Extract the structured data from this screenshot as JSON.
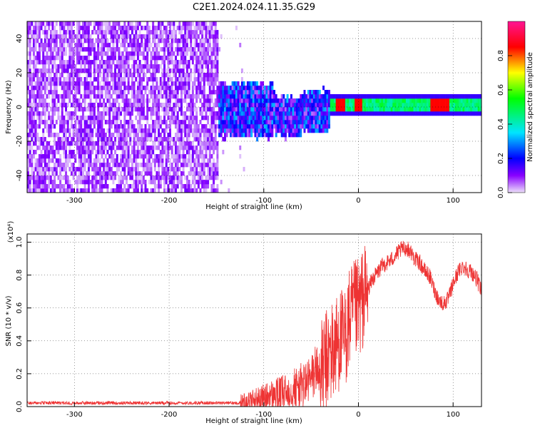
{
  "title": "C2E1.2024.024.11.35.G29",
  "chart_data": [
    {
      "type": "heatmap",
      "xlabel": "Height of straight line (km)",
      "ylabel": "Frequency (Hz)",
      "xlim": [
        -350,
        130
      ],
      "ylim": [
        -50,
        50
      ],
      "x_ticks": [
        -300,
        -200,
        -100,
        0,
        100
      ],
      "y_ticks": [
        -40,
        -20,
        0,
        20,
        40
      ],
      "colorbar": {
        "label": "Normalized spectral amplitude",
        "range": [
          0.0,
          1.0
        ],
        "ticks": [
          "0.0",
          "0.2",
          "0.4",
          "0.6",
          "0.8"
        ],
        "colormap": [
          "#ede0fa",
          "#8800ff",
          "#0000ff",
          "#00e5ff",
          "#00ff00",
          "#ffff00",
          "#ff0000",
          "#ff1493"
        ]
      },
      "regions": [
        {
          "x_range": [
            -350,
            -148
          ],
          "freq_range": [
            -50,
            50
          ],
          "amplitude_range": [
            0.0,
            0.1
          ]
        },
        {
          "x_range": [
            -148,
            -30
          ],
          "freq_range": [
            -20,
            12
          ],
          "amplitude_range": [
            0.0,
            0.35
          ]
        },
        {
          "x_range": [
            -30,
            130
          ],
          "freq_range": [
            -2,
            2
          ],
          "amplitude_range": [
            0.35,
            0.9
          ]
        }
      ],
      "grid": true
    },
    {
      "type": "line",
      "xlabel": "Height of straight line (km)",
      "ylabel": "SNR (10 * v/v)",
      "y_multiplier": "(x10⁴)",
      "xlim": [
        -350,
        130
      ],
      "ylim": [
        0.0,
        1.05
      ],
      "x_ticks": [
        -300,
        -200,
        -100,
        0,
        100
      ],
      "y_ticks": [
        "0.0",
        "0.2",
        "0.4",
        "0.6",
        "0.8",
        "1.0"
      ],
      "color": "#ee3333",
      "grid": true,
      "series": [
        {
          "x": [
            -350,
            -300,
            -250,
            -200,
            -150,
            -125,
            -110,
            -100,
            -90,
            -80,
            -70,
            -60,
            -50,
            -45,
            -40,
            -35,
            -30,
            -25,
            -20,
            -15,
            -10,
            -5,
            0,
            5,
            10,
            15,
            20,
            25,
            30,
            35,
            40,
            45,
            50,
            55,
            60,
            65,
            70,
            75,
            80,
            85,
            90,
            95,
            100,
            105,
            110,
            115,
            120,
            125,
            130
          ],
          "y": [
            0.02,
            0.015,
            0.015,
            0.012,
            0.012,
            0.03,
            0.05,
            0.06,
            0.08,
            0.09,
            0.12,
            0.14,
            0.18,
            0.25,
            0.22,
            0.3,
            0.35,
            0.38,
            0.45,
            0.42,
            0.55,
            0.6,
            0.62,
            0.7,
            0.72,
            0.78,
            0.82,
            0.86,
            0.88,
            0.9,
            0.93,
            0.96,
            0.97,
            0.95,
            0.9,
            0.88,
            0.83,
            0.8,
            0.72,
            0.65,
            0.63,
            0.66,
            0.75,
            0.82,
            0.86,
            0.84,
            0.82,
            0.78,
            0.7
          ]
        }
      ]
    }
  ]
}
